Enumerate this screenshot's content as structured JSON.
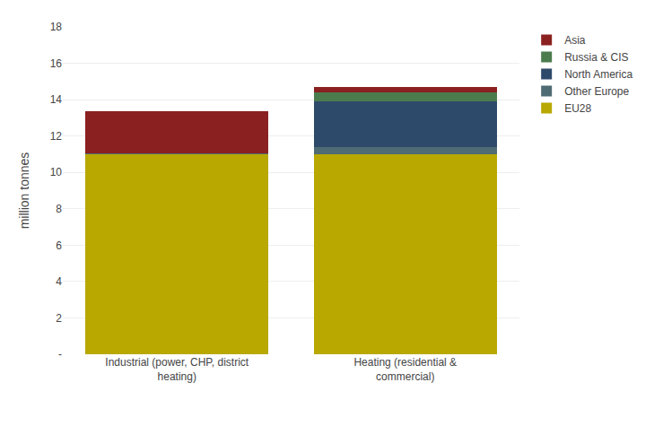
{
  "chart_data": {
    "type": "bar",
    "stacked": true,
    "categories": [
      "Industrial (power, CHP, district\nheating)",
      "Heating (residential &\ncommercial)"
    ],
    "series": [
      {
        "name": "EU28",
        "color": "#b8a800",
        "values": [
          11.0,
          11.0
        ]
      },
      {
        "name": "Other Europe",
        "color": "#4f6b74",
        "values": [
          0.05,
          0.4
        ]
      },
      {
        "name": "North America",
        "color": "#2e4a6b",
        "values": [
          0.0,
          2.5
        ]
      },
      {
        "name": "Russia & CIS",
        "color": "#4a7c4e",
        "values": [
          0.0,
          0.5
        ]
      },
      {
        "name": "Asia",
        "color": "#8b2020",
        "values": [
          2.3,
          0.3
        ]
      }
    ],
    "ylabel": "million tonnes",
    "ylim": [
      0,
      18
    ],
    "yticks": [
      {
        "value": 0,
        "label": "-"
      },
      2,
      4,
      6,
      8,
      10,
      12,
      14,
      16,
      18
    ],
    "grid": true,
    "legend": "upper right"
  }
}
